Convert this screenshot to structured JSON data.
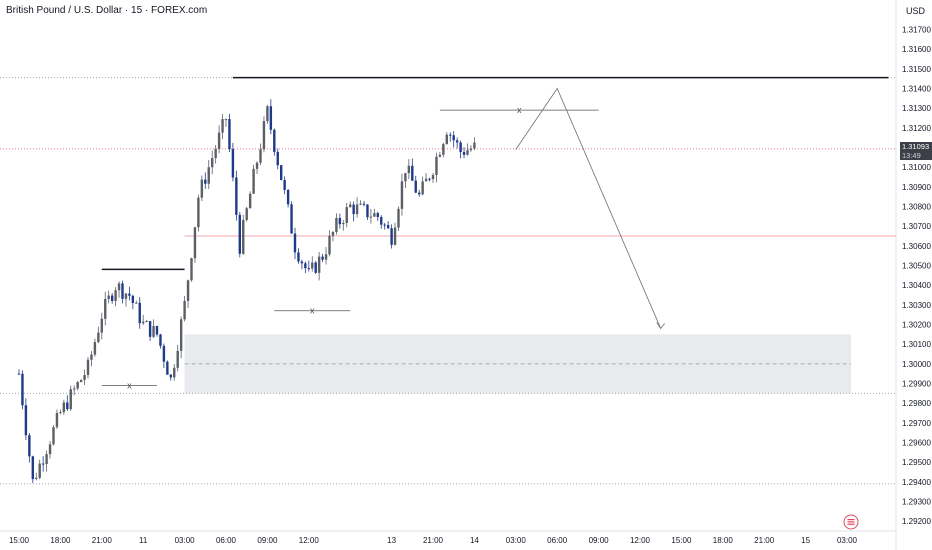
{
  "header": {
    "title": "British Pound / U.S. Dollar · 15 · FOREX.com",
    "currency": "USD"
  },
  "price_badge": {
    "price": "1.31093",
    "countdown": "13:49"
  },
  "chart_data": {
    "type": "candlestick",
    "title": "British Pound / U.S. Dollar · 15 · FOREX.com",
    "ylabel": "USD",
    "ylim": [
      1.2915,
      1.3185
    ],
    "y_ticks": [
      "1.31700",
      "1.31600",
      "1.31500",
      "1.31400",
      "1.31300",
      "1.31200",
      "1.31100",
      "1.31000",
      "1.30900",
      "1.30800",
      "1.30700",
      "1.30600",
      "1.30500",
      "1.30400",
      "1.30300",
      "1.30200",
      "1.30100",
      "1.30000",
      "1.29900",
      "1.29800",
      "1.29700",
      "1.29600",
      "1.29500",
      "1.29400",
      "1.29300",
      "1.29200"
    ],
    "x_ticks": [
      "15:00",
      "18:00",
      "21:00",
      "11",
      "03:00",
      "06:00",
      "09:00",
      "12:00",
      "13",
      "21:00",
      "14",
      "03:00",
      "06:00",
      "09:00",
      "12:00",
      "15:00",
      "18:00",
      "21:00",
      "15",
      "03:00"
    ],
    "x_tick_times": [
      0,
      3,
      6,
      9,
      12,
      15,
      18,
      21,
      27,
      30,
      33,
      36,
      39,
      42,
      45,
      48,
      51,
      54,
      57,
      60
    ],
    "time_unit": "hours",
    "time_start": "15:00",
    "current_price": 1.31093,
    "price_path": [
      [
        0,
        1.2995
      ],
      [
        1,
        1.294
      ],
      [
        3,
        1.2975
      ],
      [
        5,
        1.2998
      ],
      [
        6,
        1.3025
      ],
      [
        7,
        1.304
      ],
      [
        8,
        1.3035
      ],
      [
        9,
        1.302
      ],
      [
        10,
        1.3015
      ],
      [
        11,
        1.2992
      ],
      [
        12,
        1.303
      ],
      [
        13,
        1.3085
      ],
      [
        14,
        1.3105
      ],
      [
        15,
        1.3125
      ],
      [
        16,
        1.306
      ],
      [
        17,
        1.3095
      ],
      [
        18,
        1.3128
      ],
      [
        19,
        1.3095
      ],
      [
        20,
        1.306
      ],
      [
        21,
        1.3045
      ],
      [
        22,
        1.3055
      ],
      [
        23,
        1.307
      ],
      [
        24,
        1.308
      ],
      [
        26,
        1.3075
      ],
      [
        27,
        1.3065
      ],
      [
        28,
        1.31
      ],
      [
        29,
        1.3085
      ],
      [
        30,
        1.31
      ],
      [
        31,
        1.312
      ],
      [
        32,
        1.3108
      ],
      [
        33,
        1.311
      ]
    ],
    "levels": [
      {
        "price": 1.31455,
        "style": "dotted"
      },
      {
        "price": 1.31093,
        "style": "dotted-red"
      },
      {
        "price": 1.3065,
        "style": "solid-red"
      },
      {
        "price": 1.2985,
        "style": "dotted"
      },
      {
        "price": 1.2939,
        "style": "dotted"
      }
    ],
    "demand_zone": {
      "from": 1.2985,
      "to": 1.3015,
      "mid": 1.3,
      "start_time": 12
    },
    "structure_lines": [
      {
        "label": "",
        "price": 1.3048,
        "from": 6,
        "to": 12
      },
      {
        "label": "x",
        "price": 1.2989,
        "from": 6,
        "to": 10
      },
      {
        "label": "",
        "price": 1.31455,
        "from": 15.5,
        "to": 63
      },
      {
        "label": "x",
        "price": 1.3129,
        "from": 30.5,
        "to": 42
      },
      {
        "label": "x",
        "price": 1.3027,
        "from": 18.5,
        "to": 24
      }
    ],
    "projection_path": [
      [
        36,
        1.3109
      ],
      [
        39,
        1.314
      ],
      [
        46.5,
        1.3018
      ]
    ]
  }
}
